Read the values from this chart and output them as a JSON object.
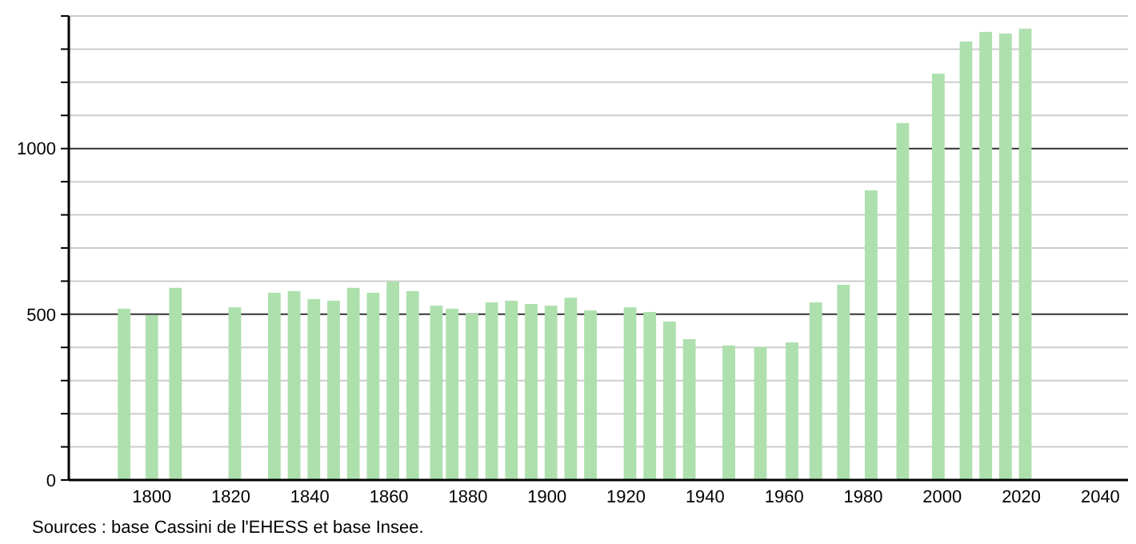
{
  "chart_data": {
    "type": "bar",
    "x": [
      1793,
      1800,
      1806,
      1821,
      1831,
      1836,
      1841,
      1846,
      1851,
      1856,
      1861,
      1866,
      1872,
      1876,
      1881,
      1886,
      1891,
      1896,
      1901,
      1906,
      1911,
      1921,
      1926,
      1931,
      1936,
      1946,
      1954,
      1962,
      1968,
      1975,
      1982,
      1990,
      1999,
      2006,
      2011,
      2016,
      2021
    ],
    "values": [
      517,
      497,
      580,
      521,
      565,
      570,
      546,
      541,
      580,
      565,
      599,
      570,
      526,
      517,
      502,
      536,
      541,
      531,
      526,
      550,
      512,
      521,
      507,
      478,
      425,
      406,
      401,
      415,
      536,
      589,
      874,
      1077,
      1226,
      1323,
      1352,
      1347,
      1362
    ],
    "color": "#aee0ae",
    "xlim": [
      1779,
      2047
    ],
    "xticks": [
      1800,
      1820,
      1840,
      1860,
      1880,
      1900,
      1920,
      1940,
      1960,
      1980,
      2000,
      2020,
      2040
    ],
    "ylim": [
      0,
      1400
    ],
    "yticks": [
      0,
      {
        "value": 100,
        "label": null
      },
      {
        "value": 200,
        "label": null
      },
      {
        "value": 300,
        "label": null
      },
      {
        "value": 400,
        "label": null
      },
      500,
      {
        "value": 600,
        "label": null
      },
      {
        "value": 700,
        "label": null
      },
      {
        "value": 800,
        "label": null
      },
      {
        "value": 900,
        "label": null
      },
      1000,
      {
        "value": 1100,
        "label": null
      },
      {
        "value": 1200,
        "label": null
      },
      {
        "value": 1300,
        "label": null
      },
      {
        "value": 1400,
        "label": null
      }
    ],
    "grid": "y",
    "annotations": [
      "Sources : base Cassini de l'EHESS et base Insee."
    ]
  }
}
